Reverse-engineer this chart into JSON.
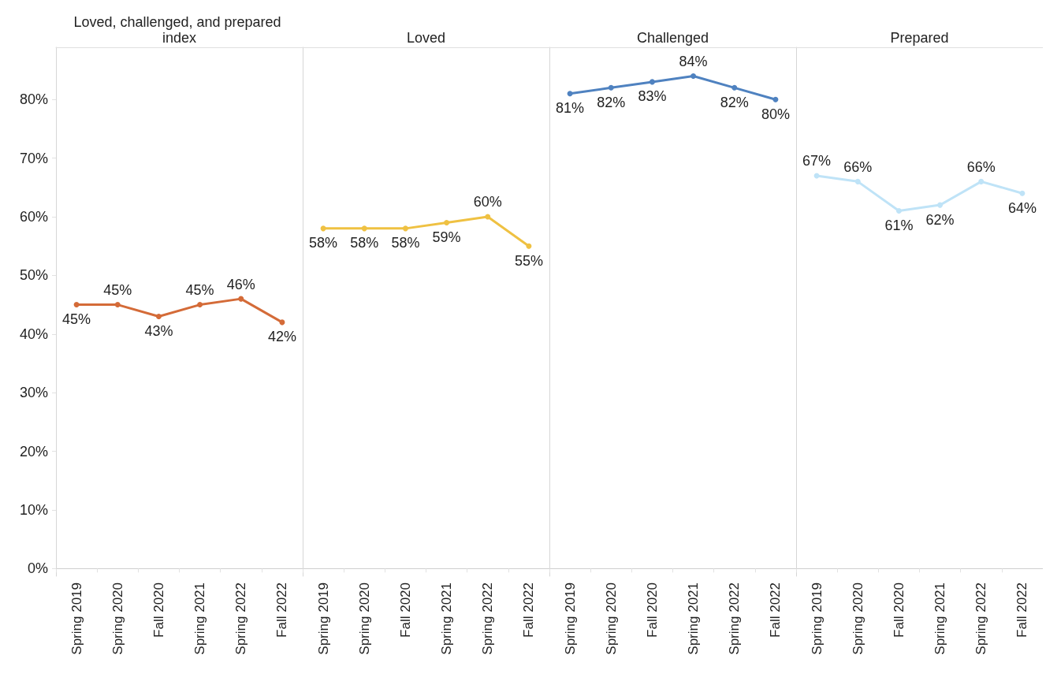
{
  "chart_data": [
    {
      "type": "line",
      "title": "Loved, challenged, and prepared index",
      "categories": [
        "Spring 2019",
        "Spring 2020",
        "Fall 2020",
        "Spring 2021",
        "Spring 2022",
        "Fall 2022"
      ],
      "series": [
        {
          "color": "#d46b38",
          "values": [
            45,
            45,
            43,
            45,
            46,
            42
          ],
          "value_labels": [
            "45%",
            "45%",
            "43%",
            "45%",
            "46%",
            "42%"
          ]
        }
      ],
      "ylim": [
        -1.3,
        88.9
      ],
      "yticks": [
        {
          "value": 0,
          "label": "0%"
        },
        {
          "value": 10,
          "label": "10%"
        },
        {
          "value": 20,
          "label": "20%"
        },
        {
          "value": 30,
          "label": "30%"
        },
        {
          "value": 40,
          "label": "40%"
        },
        {
          "value": 50,
          "label": "50%"
        },
        {
          "value": 60,
          "label": "60%"
        },
        {
          "value": 70,
          "label": "70%"
        },
        {
          "value": 80,
          "label": "80%"
        }
      ],
      "marker": "circle"
    },
    {
      "type": "line",
      "title": "Loved",
      "categories": [
        "Spring 2019",
        "Spring 2020",
        "Fall 2020",
        "Spring 2021",
        "Spring 2022",
        "Fall 2022"
      ],
      "series": [
        {
          "color": "#efc142",
          "values": [
            58,
            58,
            58,
            59,
            60,
            55
          ],
          "value_labels": [
            "58%",
            "58%",
            "58%",
            "59%",
            "60%",
            "55%"
          ]
        }
      ],
      "ylim": [
        -1.3,
        88.9
      ],
      "marker": "circle",
      "tick_labels": "x"
    },
    {
      "type": "line",
      "title": "Challenged",
      "categories": [
        "Spring 2019",
        "Spring 2020",
        "Fall 2020",
        "Spring 2021",
        "Spring 2022",
        "Fall 2022"
      ],
      "series": [
        {
          "color": "#4f82c0",
          "values": [
            81,
            82,
            83,
            84,
            82,
            80
          ],
          "value_labels": [
            "81%",
            "82%",
            "83%",
            "84%",
            "82%",
            "80%"
          ]
        }
      ],
      "ylim": [
        -1.3,
        88.9
      ],
      "marker": "circle",
      "tick_labels": "x"
    },
    {
      "type": "line",
      "title": "Prepared",
      "categories": [
        "Spring 2019",
        "Spring 2020",
        "Fall 2020",
        "Spring 2021",
        "Spring 2022",
        "Fall 2022"
      ],
      "series": [
        {
          "color": "#bfe3f7",
          "values": [
            67,
            66,
            61,
            62,
            66,
            64
          ],
          "value_labels": [
            "67%",
            "66%",
            "61%",
            "62%",
            "66%",
            "64%"
          ]
        }
      ],
      "ylim": [
        -1.3,
        88.9
      ],
      "marker": "circle",
      "tick_labels": "x"
    }
  ]
}
